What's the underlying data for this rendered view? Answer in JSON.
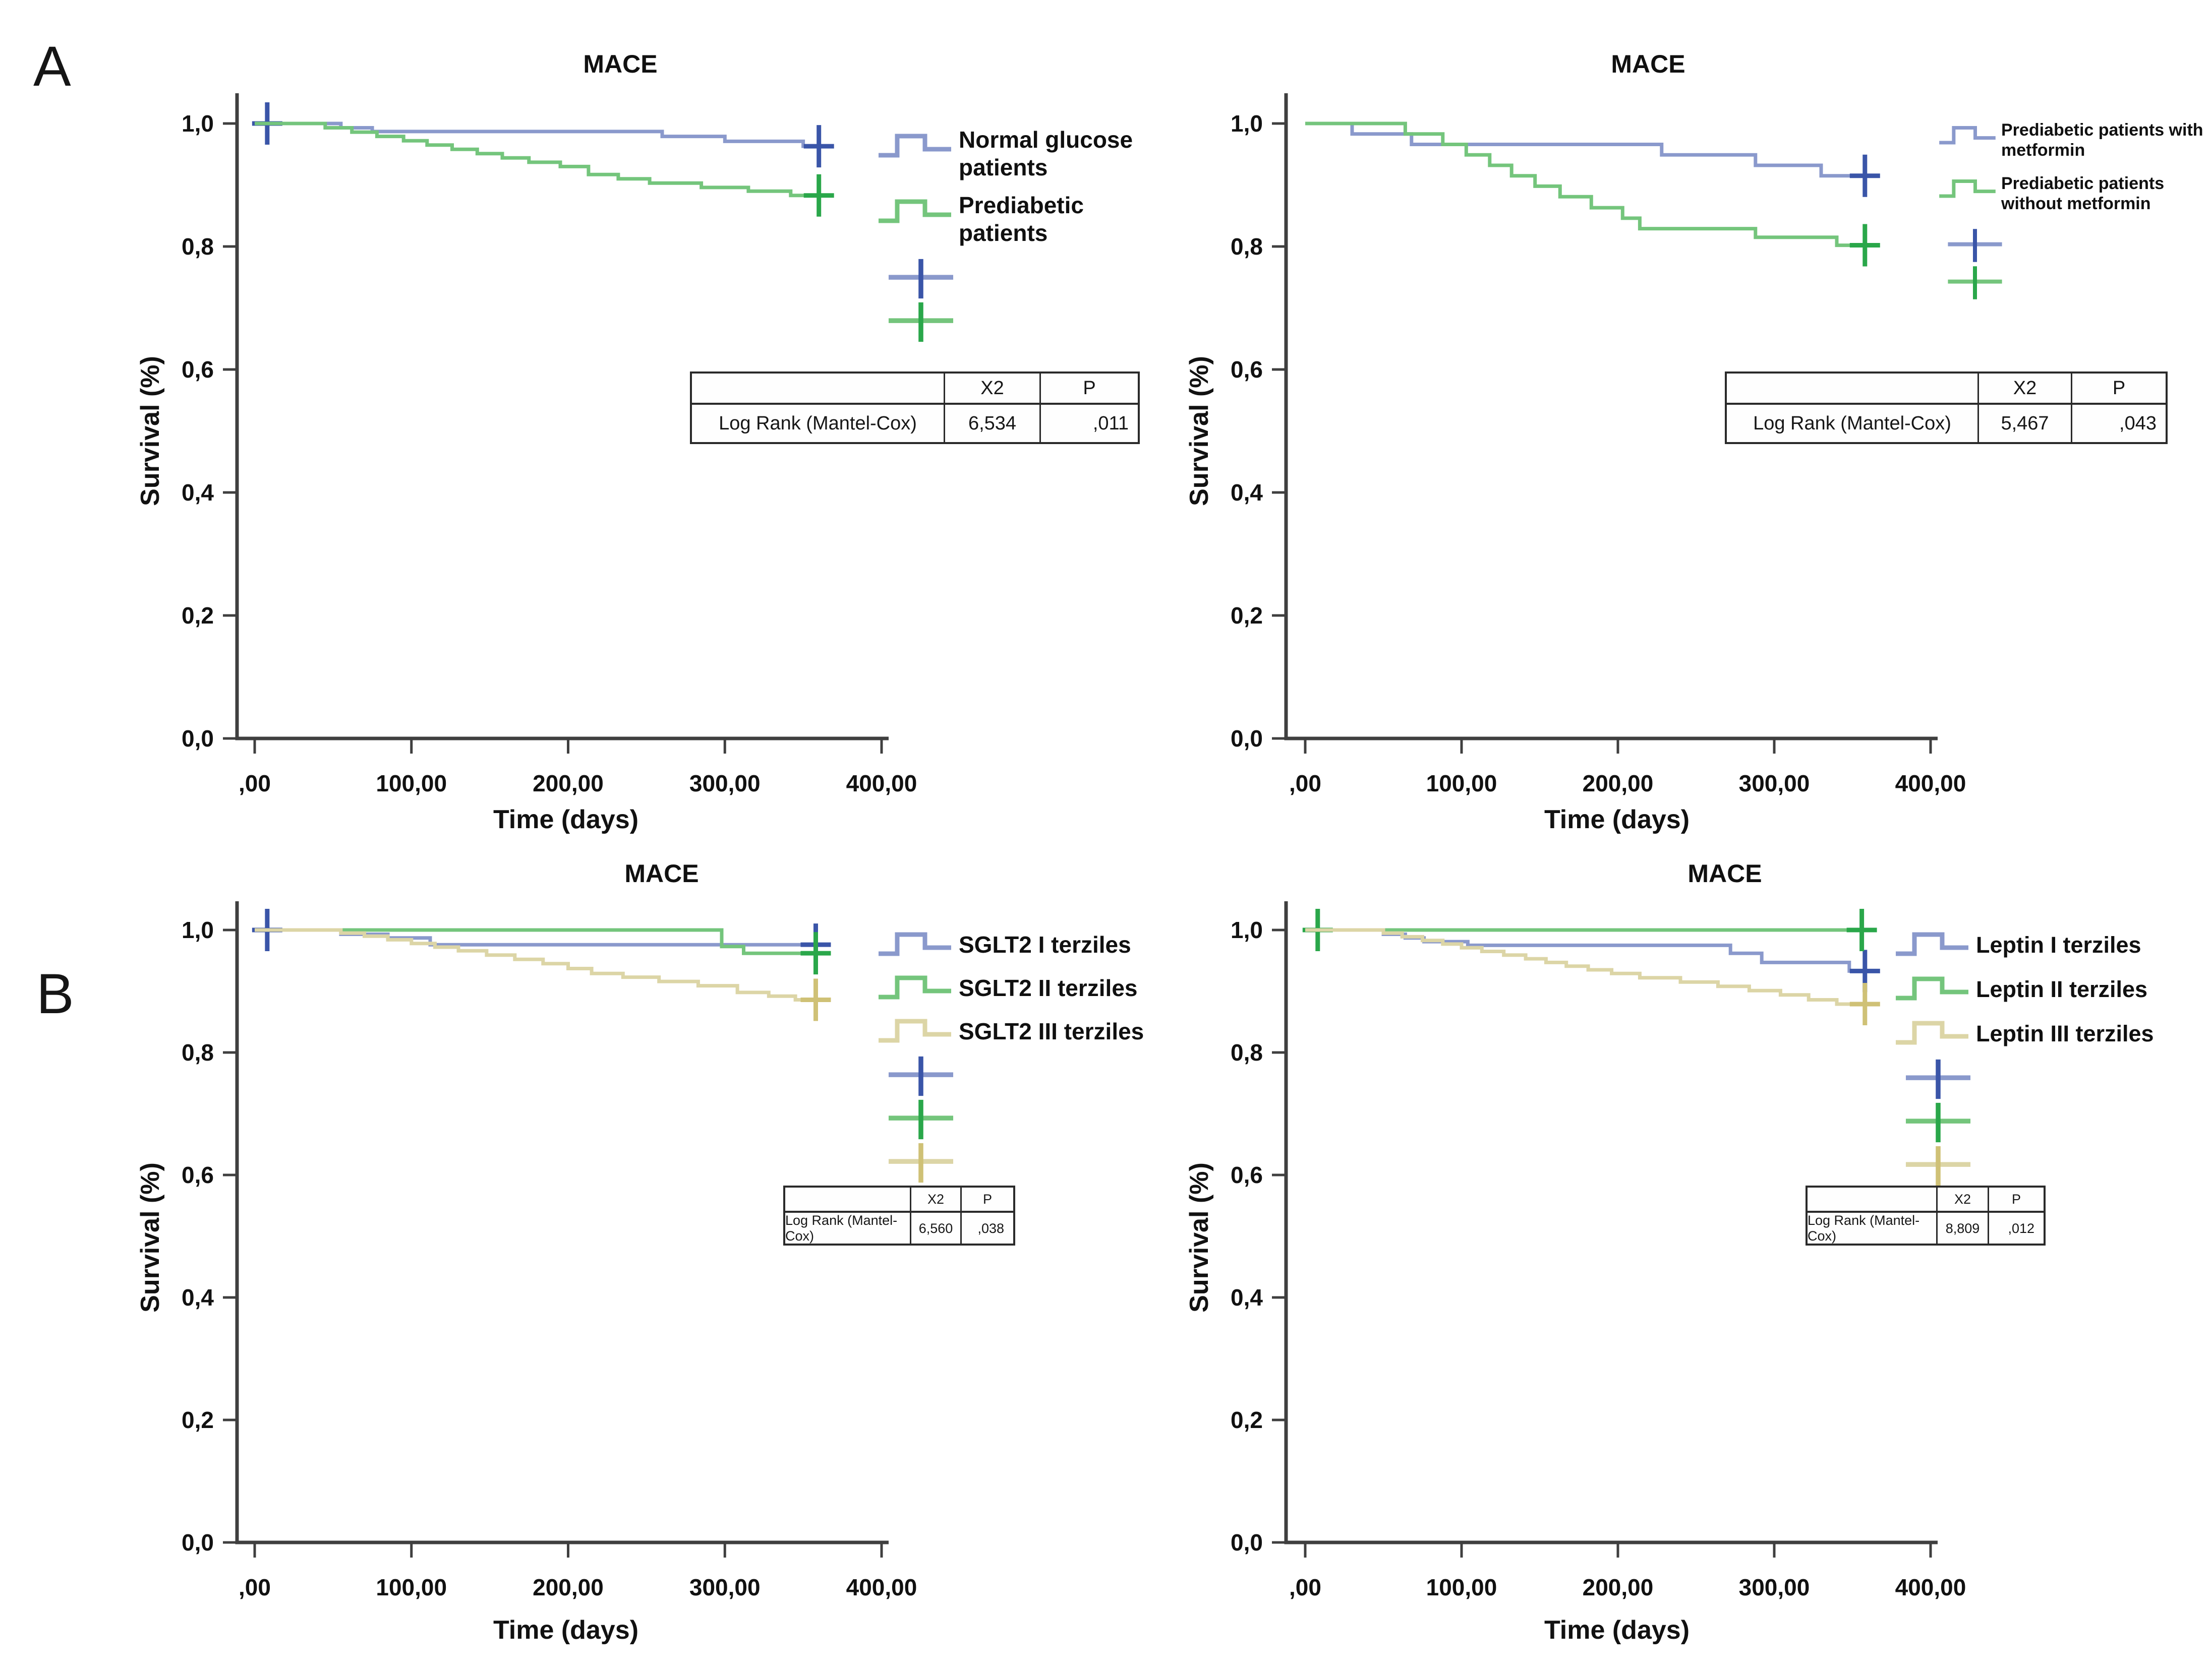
{
  "figure": {
    "panel_a_label": "A",
    "panel_b_label": "B",
    "colors": {
      "blue": "#8a99cc",
      "green": "#74c57c",
      "tan": "#dcd5a6",
      "censor_blue": "#3a55a8",
      "censor_green": "#2aa74a",
      "censor_tan": "#cfc176",
      "axis": "#3f3f3f",
      "text": "#111111",
      "table_border": "#2a2a2a"
    }
  },
  "chart_data": [
    {
      "type": "line",
      "step": true,
      "title": "MACE",
      "xlabel": "Time (days)",
      "ylabel": "Survival (%)",
      "xlim": [
        0,
        400
      ],
      "ylim": [
        0.0,
        1.05
      ],
      "grid": false,
      "legend_position": "right",
      "xticks": [
        0,
        100,
        200,
        300,
        400
      ],
      "xtick_labels": [
        ",00",
        "100,00",
        "200,00",
        "300,00",
        "400,00"
      ],
      "yticks": [
        1.0,
        0.8,
        0.6,
        0.4,
        0.2,
        0.0
      ],
      "ytick_labels": [
        "1,0",
        "0,8",
        "0,6",
        "0,4",
        "0,2",
        "0,0"
      ],
      "series": [
        {
          "name": "Normal glucose patients",
          "legend_lines": [
            "Normal glucose",
            "patients"
          ],
          "color_key": "blue",
          "censor_color_key": "censor_blue",
          "points": [
            [
              0,
              1.0
            ],
            [
              55,
              0.993
            ],
            [
              75,
              0.987
            ],
            [
              260,
              0.979
            ],
            [
              300,
              0.971
            ],
            [
              350,
              0.963
            ],
            [
              365,
              0.963
            ]
          ],
          "censors": [
            [
              8,
              1.0
            ],
            [
              360,
              0.963
            ]
          ]
        },
        {
          "name": "Prediabetic patients",
          "legend_lines": [
            "Prediabetic",
            "patients"
          ],
          "color_key": "green",
          "censor_color_key": "censor_green",
          "points": [
            [
              0,
              1.0
            ],
            [
              45,
              0.993
            ],
            [
              62,
              0.986
            ],
            [
              78,
              0.979
            ],
            [
              95,
              0.972
            ],
            [
              110,
              0.965
            ],
            [
              126,
              0.958
            ],
            [
              142,
              0.951
            ],
            [
              158,
              0.944
            ],
            [
              175,
              0.937
            ],
            [
              195,
              0.93
            ],
            [
              213,
              0.917
            ],
            [
              232,
              0.91
            ],
            [
              252,
              0.903
            ],
            [
              285,
              0.896
            ],
            [
              315,
              0.89
            ],
            [
              342,
              0.883
            ],
            [
              365,
              0.883
            ]
          ],
          "censors": [
            [
              360,
              0.883
            ]
          ]
        }
      ],
      "stats": {
        "col_headers": [
          "X2",
          "P"
        ],
        "row_label": "Log Rank (Mantel-Cox)",
        "X2": "6,534",
        "P": ",011"
      }
    },
    {
      "type": "line",
      "step": true,
      "title": "MACE",
      "xlabel": "Time (days)",
      "ylabel": "Survival (%)",
      "xlim": [
        0,
        400
      ],
      "ylim": [
        0.0,
        1.05
      ],
      "grid": false,
      "legend_position": "right",
      "xticks": [
        0,
        100,
        200,
        300,
        400
      ],
      "xtick_labels": [
        ",00",
        "100,00",
        "200,00",
        "300,00",
        "400,00"
      ],
      "yticks": [
        1.0,
        0.8,
        0.6,
        0.4,
        0.2,
        0.0
      ],
      "ytick_labels": [
        "1,0",
        "0,8",
        "0,6",
        "0,4",
        "0,2",
        "0,0"
      ],
      "series": [
        {
          "name": "Prediabetic patients with metformin",
          "legend_lines": [
            "Prediabetic patients with",
            "metformin"
          ],
          "color_key": "blue",
          "censor_color_key": "censor_blue",
          "points": [
            [
              0,
              1.0
            ],
            [
              30,
              0.983
            ],
            [
              68,
              0.966
            ],
            [
              228,
              0.949
            ],
            [
              288,
              0.932
            ],
            [
              330,
              0.915
            ],
            [
              365,
              0.915
            ]
          ],
          "censors": [
            [
              358,
              0.915
            ]
          ]
        },
        {
          "name": "Prediabetic patients without metformin",
          "legend_lines": [
            "Prediabetic patients",
            "without metformin"
          ],
          "color_key": "green",
          "censor_color_key": "censor_green",
          "points": [
            [
              0,
              1.0
            ],
            [
              64,
              0.983
            ],
            [
              88,
              0.966
            ],
            [
              103,
              0.949
            ],
            [
              118,
              0.932
            ],
            [
              132,
              0.915
            ],
            [
              147,
              0.898
            ],
            [
              163,
              0.881
            ],
            [
              183,
              0.863
            ],
            [
              203,
              0.846
            ],
            [
              214,
              0.829
            ],
            [
              288,
              0.815
            ],
            [
              340,
              0.802
            ],
            [
              365,
              0.802
            ]
          ],
          "censors": [
            [
              358,
              0.802
            ]
          ]
        }
      ],
      "stats": {
        "col_headers": [
          "X2",
          "P"
        ],
        "row_label": "Log Rank (Mantel-Cox)",
        "X2": "5,467",
        "P": ",043"
      }
    },
    {
      "type": "line",
      "step": true,
      "title": "MACE",
      "xlabel": "Time (days)",
      "ylabel": "Survival (%)",
      "xlim": [
        0,
        400
      ],
      "ylim": [
        0.0,
        1.05
      ],
      "grid": false,
      "legend_position": "right",
      "xticks": [
        0,
        100,
        200,
        300,
        400
      ],
      "xtick_labels": [
        ",00",
        "100,00",
        "200,00",
        "300,00",
        "400,00"
      ],
      "yticks": [
        1.0,
        0.8,
        0.6,
        0.4,
        0.2,
        0.0
      ],
      "ytick_labels": [
        "1,0",
        "0,8",
        "0,6",
        "0,4",
        "0,2",
        "0,0"
      ],
      "series": [
        {
          "name": "SGLT2 I terziles",
          "legend_lines": [
            "SGLT2 I terziles"
          ],
          "color_key": "blue",
          "censor_color_key": "censor_blue",
          "points": [
            [
              0,
              1.0
            ],
            [
              55,
              0.993
            ],
            [
              85,
              0.987
            ],
            [
              112,
              0.976
            ],
            [
              365,
              0.976
            ]
          ],
          "censors": [
            [
              8,
              1.0
            ],
            [
              358,
              0.976
            ]
          ]
        },
        {
          "name": "SGLT2 II terziles",
          "legend_lines": [
            "SGLT2 II terziles"
          ],
          "color_key": "green",
          "censor_color_key": "censor_green",
          "points": [
            [
              0,
              1.0
            ],
            [
              298,
              0.973
            ],
            [
              312,
              0.962
            ],
            [
              365,
              0.962
            ]
          ],
          "censors": [
            [
              358,
              0.962
            ]
          ]
        },
        {
          "name": "SGLT2 III terziles",
          "legend_lines": [
            "SGLT2 III terziles"
          ],
          "color_key": "tan",
          "censor_color_key": "censor_tan",
          "points": [
            [
              0,
              1.0
            ],
            [
              55,
              0.995
            ],
            [
              70,
              0.99
            ],
            [
              85,
              0.984
            ],
            [
              100,
              0.978
            ],
            [
              115,
              0.972
            ],
            [
              130,
              0.966
            ],
            [
              148,
              0.959
            ],
            [
              166,
              0.952
            ],
            [
              184,
              0.945
            ],
            [
              200,
              0.937
            ],
            [
              215,
              0.929
            ],
            [
              235,
              0.923
            ],
            [
              258,
              0.916
            ],
            [
              283,
              0.909
            ],
            [
              308,
              0.898
            ],
            [
              328,
              0.892
            ],
            [
              345,
              0.886
            ],
            [
              365,
              0.886
            ]
          ],
          "censors": [
            [
              358,
              0.886
            ]
          ]
        }
      ],
      "stats": {
        "col_headers": [
          "X2",
          "P"
        ],
        "row_label": "Log Rank (Mantel-Cox)",
        "X2": "6,560",
        "P": ",038"
      }
    },
    {
      "type": "line",
      "step": true,
      "title": "MACE",
      "xlabel": "Time (days)",
      "ylabel": "Survival (%)",
      "xlim": [
        0,
        400
      ],
      "ylim": [
        0.0,
        1.05
      ],
      "grid": false,
      "legend_position": "right",
      "xticks": [
        0,
        100,
        200,
        300,
        400
      ],
      "xtick_labels": [
        ",00",
        "100,00",
        "200,00",
        "300,00",
        "400,00"
      ],
      "yticks": [
        1.0,
        0.8,
        0.6,
        0.4,
        0.2,
        0.0
      ],
      "ytick_labels": [
        "1,0",
        "0,8",
        "0,6",
        "0,4",
        "0,2",
        "0,0"
      ],
      "series": [
        {
          "name": "Leptin I terziles",
          "legend_lines": [
            "Leptin I terziles"
          ],
          "color_key": "blue",
          "censor_color_key": "censor_blue",
          "points": [
            [
              0,
              1.0
            ],
            [
              50,
              0.993
            ],
            [
              64,
              0.987
            ],
            [
              76,
              0.981
            ],
            [
              104,
              0.975
            ],
            [
              272,
              0.962
            ],
            [
              292,
              0.947
            ],
            [
              348,
              0.933
            ],
            [
              365,
              0.933
            ]
          ],
          "censors": [
            [
              358,
              0.933
            ]
          ]
        },
        {
          "name": "Leptin II terziles",
          "legend_lines": [
            "Leptin II terziles"
          ],
          "color_key": "green",
          "censor_color_key": "censor_green",
          "points": [
            [
              0,
              1.0
            ],
            [
              365,
              1.0
            ]
          ],
          "censors": [
            [
              8,
              1.0
            ],
            [
              356,
              1.0
            ]
          ]
        },
        {
          "name": "Leptin III terziles",
          "legend_lines": [
            "Leptin III terziles"
          ],
          "color_key": "tan",
          "censor_color_key": "censor_tan",
          "points": [
            [
              0,
              1.0
            ],
            [
              50,
              0.995
            ],
            [
              62,
              0.989
            ],
            [
              75,
              0.983
            ],
            [
              88,
              0.977
            ],
            [
              100,
              0.971
            ],
            [
              113,
              0.965
            ],
            [
              127,
              0.959
            ],
            [
              141,
              0.953
            ],
            [
              154,
              0.947
            ],
            [
              167,
              0.941
            ],
            [
              181,
              0.935
            ],
            [
              196,
              0.929
            ],
            [
              214,
              0.922
            ],
            [
              240,
              0.915
            ],
            [
              264,
              0.908
            ],
            [
              284,
              0.901
            ],
            [
              304,
              0.894
            ],
            [
              322,
              0.886
            ],
            [
              340,
              0.879
            ],
            [
              365,
              0.879
            ]
          ],
          "censors": [
            [
              358,
              0.879
            ]
          ]
        }
      ],
      "stats": {
        "col_headers": [
          "X2",
          "P"
        ],
        "row_label": "Log Rank (Mantel-Cox)",
        "X2": "8,809",
        "P": ",012"
      }
    }
  ]
}
